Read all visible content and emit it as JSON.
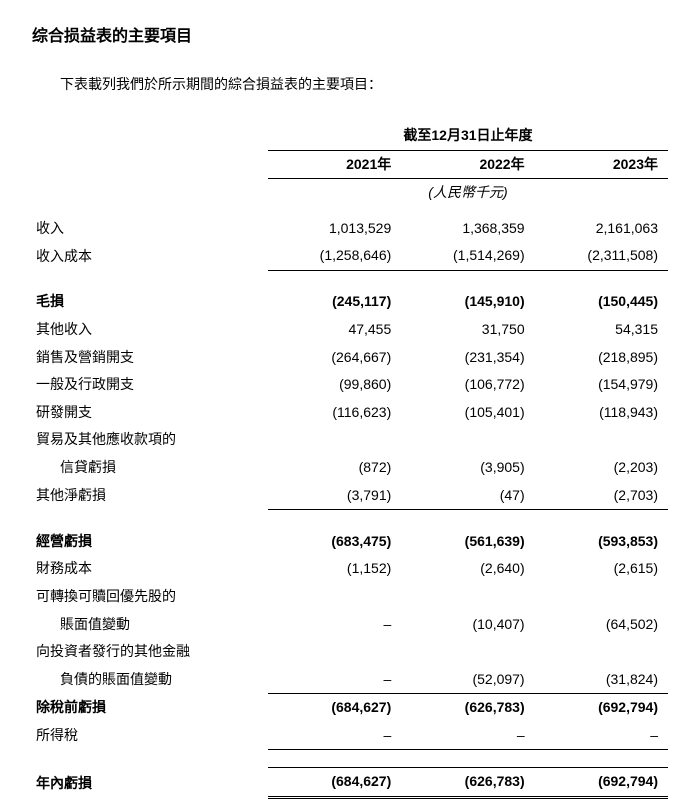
{
  "title": "综合损益表的主要項目",
  "intro": "下表載列我們於所示期間的綜合損益表的主要項目：",
  "header": {
    "main": "截至12月31日止年度",
    "years": [
      "2021年",
      "2022年",
      "2023年"
    ],
    "unit": "(人民幣千元)"
  },
  "rows": [
    {
      "label": "收入",
      "vals": [
        "1,013,529",
        "1,368,359",
        "2,161,063"
      ],
      "bold": false
    },
    {
      "label": "收入成本",
      "vals": [
        "(1,258,646)",
        "(1,514,269)",
        "(2,311,508)"
      ],
      "bold": false,
      "underline": "single"
    }
  ],
  "group2": [
    {
      "label": "毛損",
      "vals": [
        "(245,117)",
        "(145,910)",
        "(150,445)"
      ],
      "bold": true
    },
    {
      "label": "其他收入",
      "vals": [
        "47,455",
        "31,750",
        "54,315"
      ],
      "bold": false
    },
    {
      "label": "銷售及營銷開支",
      "vals": [
        "(264,667)",
        "(231,354)",
        "(218,895)"
      ],
      "bold": false
    },
    {
      "label": "一般及行政開支",
      "vals": [
        "(99,860)",
        "(106,772)",
        "(154,979)"
      ],
      "bold": false
    },
    {
      "label": "研發開支",
      "vals": [
        "(116,623)",
        "(105,401)",
        "(118,943)"
      ],
      "bold": false
    },
    {
      "label": "貿易及其他應收款項的",
      "vals": [
        "",
        "",
        ""
      ],
      "bold": false
    },
    {
      "label": "信貸虧損",
      "vals": [
        "(872)",
        "(3,905)",
        "(2,203)"
      ],
      "bold": false,
      "indent": true
    },
    {
      "label": "其他淨虧損",
      "vals": [
        "(3,791)",
        "(47)",
        "(2,703)"
      ],
      "bold": false,
      "underline": "single"
    }
  ],
  "group3": [
    {
      "label": "經營虧損",
      "vals": [
        "(683,475)",
        "(561,639)",
        "(593,853)"
      ],
      "bold": true
    },
    {
      "label": "財務成本",
      "vals": [
        "(1,152)",
        "(2,640)",
        "(2,615)"
      ],
      "bold": false
    },
    {
      "label": "可轉換可贖回優先股的",
      "vals": [
        "",
        "",
        ""
      ],
      "bold": false
    },
    {
      "label": "賬面值變動",
      "vals": [
        "–",
        "(10,407)",
        "(64,502)"
      ],
      "bold": false,
      "indent": true
    },
    {
      "label": "向投資者發行的其他金融",
      "vals": [
        "",
        "",
        ""
      ],
      "bold": false
    },
    {
      "label": "負債的賬面值變動",
      "vals": [
        "–",
        "(52,097)",
        "(31,824)"
      ],
      "bold": false,
      "indent": true,
      "underline": "single"
    },
    {
      "label": "除稅前虧損",
      "vals": [
        "(684,627)",
        "(626,783)",
        "(692,794)"
      ],
      "bold": true
    },
    {
      "label": "所得稅",
      "vals": [
        "–",
        "–",
        "–"
      ],
      "bold": false,
      "underline": "single"
    }
  ],
  "final": {
    "label": "年內虧損",
    "vals": [
      "(684,627)",
      "(626,783)",
      "(692,794)"
    ],
    "bold": true
  }
}
